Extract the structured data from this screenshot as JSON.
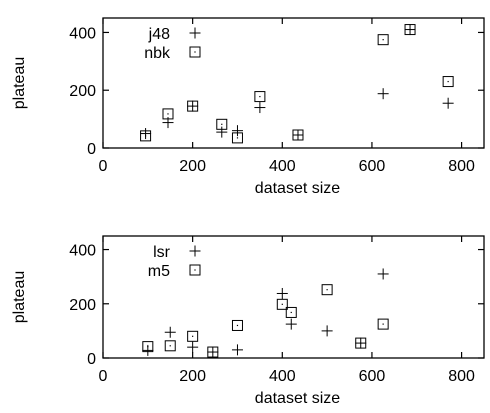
{
  "chart_data": [
    {
      "type": "scatter",
      "xlabel": "dataset size",
      "ylabel": "plateau",
      "xlim": [
        0,
        850
      ],
      "ylim": [
        0,
        450
      ],
      "xticks": [
        "0",
        "200",
        "400",
        "600",
        "800"
      ],
      "yticks": [
        "0",
        "200",
        "400"
      ],
      "grid": false,
      "legend_position": "top-left",
      "series": [
        {
          "name": "j48",
          "marker": "plus",
          "points": [
            [
              95,
              50
            ],
            [
              145,
              88
            ],
            [
              200,
              145
            ],
            [
              265,
              55
            ],
            [
              300,
              60
            ],
            [
              350,
              140
            ],
            [
              435,
              45
            ],
            [
              625,
              188
            ],
            [
              685,
              410
            ],
            [
              770,
              155
            ]
          ]
        },
        {
          "name": "nbk",
          "marker": "square",
          "points": [
            [
              95,
              42
            ],
            [
              145,
              118
            ],
            [
              200,
              145
            ],
            [
              265,
              82
            ],
            [
              300,
              35
            ],
            [
              350,
              178
            ],
            [
              435,
              45
            ],
            [
              625,
              375
            ],
            [
              685,
              410
            ],
            [
              770,
              230
            ]
          ]
        }
      ]
    },
    {
      "type": "scatter",
      "xlabel": "dataset size",
      "ylabel": "plateau",
      "xlim": [
        0,
        850
      ],
      "ylim": [
        0,
        450
      ],
      "xticks": [
        "0",
        "200",
        "400",
        "600",
        "800"
      ],
      "yticks": [
        "0",
        "200",
        "400"
      ],
      "grid": false,
      "legend_position": "top-left",
      "series": [
        {
          "name": "lsr",
          "marker": "plus",
          "points": [
            [
              100,
              28
            ],
            [
              150,
              95
            ],
            [
              200,
              40
            ],
            [
              245,
              22
            ],
            [
              300,
              30
            ],
            [
              400,
              238
            ],
            [
              420,
              125
            ],
            [
              500,
              100
            ],
            [
              575,
              55
            ],
            [
              625,
              310
            ]
          ]
        },
        {
          "name": "m5",
          "marker": "square",
          "points": [
            [
              100,
              42
            ],
            [
              150,
              45
            ],
            [
              200,
              80
            ],
            [
              245,
              22
            ],
            [
              300,
              120
            ],
            [
              400,
              198
            ],
            [
              420,
              168
            ],
            [
              500,
              252
            ],
            [
              575,
              55
            ],
            [
              625,
              125
            ]
          ]
        }
      ]
    }
  ]
}
